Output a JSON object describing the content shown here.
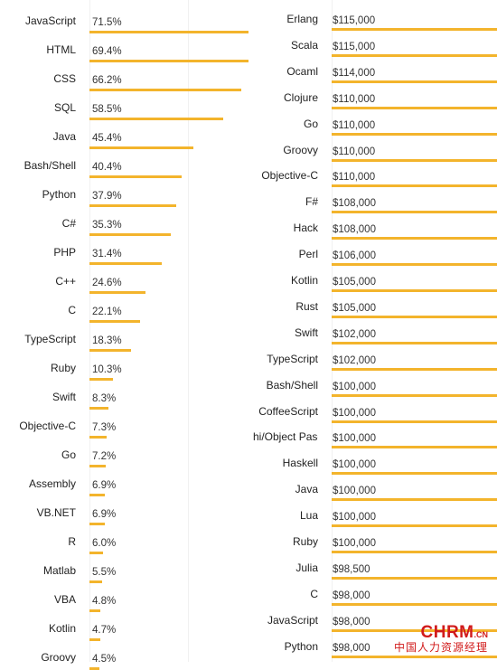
{
  "colors": {
    "bar": "#f3b42c",
    "guide": "#f1f1f1"
  },
  "watermark": {
    "brand": "CHRM",
    "domain": ".CN",
    "cn": "中国人力资源经理"
  },
  "chart_data": [
    {
      "type": "bar",
      "orientation": "horizontal",
      "title": "",
      "xlim": [
        0,
        100
      ],
      "categories": [
        "JavaScript",
        "HTML",
        "CSS",
        "SQL",
        "Java",
        "Bash/Shell",
        "Python",
        "C#",
        "PHP",
        "C++",
        "C",
        "TypeScript",
        "Ruby",
        "Swift",
        "Objective-C",
        "Go",
        "Assembly",
        "VB.NET",
        "R",
        "Matlab",
        "VBA",
        "Kotlin",
        "Groovy"
      ],
      "values": [
        71.5,
        69.4,
        66.2,
        58.5,
        45.4,
        40.4,
        37.9,
        35.3,
        31.4,
        24.6,
        22.1,
        18.3,
        10.3,
        8.3,
        7.3,
        7.2,
        6.9,
        6.9,
        6.0,
        5.5,
        4.8,
        4.7,
        4.5
      ],
      "labels": [
        "71.5%",
        "69.4%",
        "66.2%",
        "58.5%",
        "45.4%",
        "40.4%",
        "37.9%",
        "35.3%",
        "31.4%",
        "24.6%",
        "22.1%",
        "18.3%",
        "10.3%",
        "8.3%",
        "7.3%",
        "7.2%",
        "6.9%",
        "6.9%",
        "6.0%",
        "5.5%",
        "4.8%",
        "4.7%",
        "4.5%"
      ]
    },
    {
      "type": "bar",
      "orientation": "horizontal",
      "title": "",
      "categories": [
        "Erlang",
        "Scala",
        "Ocaml",
        "Clojure",
        "Go",
        "Groovy",
        "Objective-C",
        "F#",
        "Hack",
        "Perl",
        "Kotlin",
        "Rust",
        "Swift",
        "TypeScript",
        "Bash/Shell",
        "CoffeeScript",
        "hi/Object Pascal",
        "Haskell",
        "Java",
        "Lua",
        "Ruby",
        "Julia",
        "C",
        "JavaScript",
        "Python"
      ],
      "values": [
        115000,
        115000,
        114000,
        110000,
        110000,
        110000,
        110000,
        108000,
        108000,
        106000,
        105000,
        105000,
        102000,
        102000,
        100000,
        100000,
        100000,
        100000,
        100000,
        100000,
        100000,
        98500,
        98000,
        98000,
        98000
      ],
      "labels": [
        "$115,000",
        "$115,000",
        "$114,000",
        "$110,000",
        "$110,000",
        "$110,000",
        "$110,000",
        "$108,000",
        "$108,000",
        "$106,000",
        "$105,000",
        "$105,000",
        "$102,000",
        "$102,000",
        "$100,000",
        "$100,000",
        "$100,000",
        "$100,000",
        "$100,000",
        "$100,000",
        "$100,000",
        "$98,500",
        "$98,000",
        "$98,000",
        "$98,000"
      ]
    }
  ]
}
